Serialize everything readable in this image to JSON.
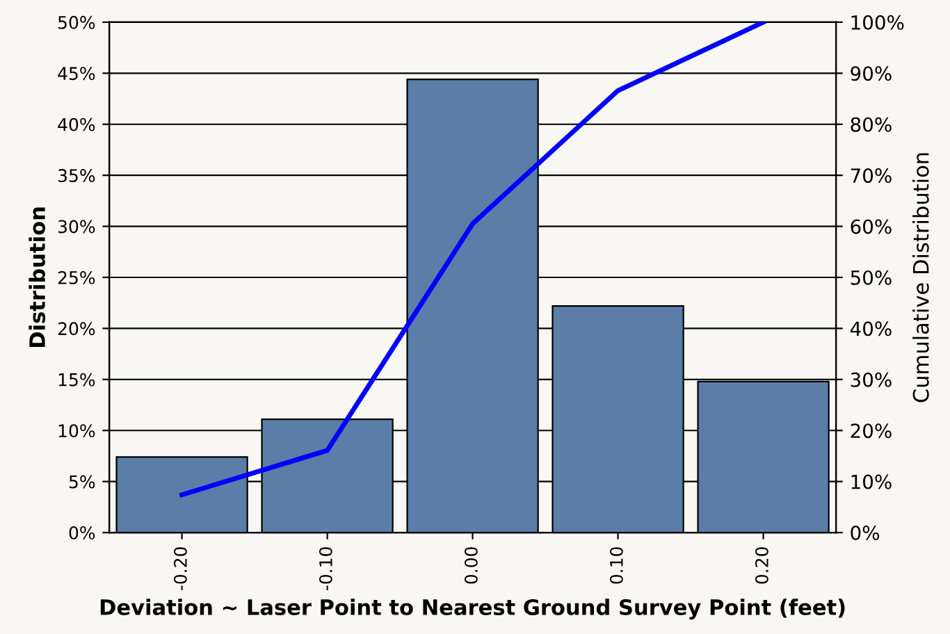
{
  "chart_data": {
    "type": "bar",
    "xlabel": "Deviation ~ Laser Point to Nearest Ground Survey Point (feet)",
    "ylabel": "Distribution",
    "y2label": "Cumulative Distribution",
    "categories": [
      "-0.20",
      "-0.10",
      "0.00",
      "0.10",
      "0.20"
    ],
    "series": [
      {
        "color": "#5b7ea9",
        "values": [
          7.4,
          11.1,
          44.4,
          22.2,
          14.8
        ]
      },
      {
        "type": "line",
        "axis": "y2",
        "color": "#0000ff",
        "values": [
          7.4,
          16.1,
          60.5,
          86.6,
          100
        ]
      }
    ],
    "ylim": [
      0,
      50
    ],
    "yticks": [
      {
        "value": 0,
        "label": "0%"
      },
      {
        "value": 5,
        "label": "5%"
      },
      {
        "value": 10,
        "label": "10%"
      },
      {
        "value": 15,
        "label": "15%"
      },
      {
        "value": 20,
        "label": "20%"
      },
      {
        "value": 25,
        "label": "25%"
      },
      {
        "value": 30,
        "label": "30%"
      },
      {
        "value": 35,
        "label": "35%"
      },
      {
        "value": 40,
        "label": "40%"
      },
      {
        "value": 45,
        "label": "45%"
      },
      {
        "value": 50,
        "label": "50%"
      }
    ],
    "y2lim": [
      0,
      100
    ],
    "y2ticks": [
      {
        "value": 0,
        "label": "0%"
      },
      {
        "value": 10,
        "label": "10%"
      },
      {
        "value": 20,
        "label": "20%"
      },
      {
        "value": 30,
        "label": "30%"
      },
      {
        "value": 40,
        "label": "40%"
      },
      {
        "value": 50,
        "label": "50%"
      },
      {
        "value": 60,
        "label": "60%"
      },
      {
        "value": 70,
        "label": "70%"
      },
      {
        "value": 80,
        "label": "80%"
      },
      {
        "value": 90,
        "label": "90%"
      },
      {
        "value": 100,
        "label": "100%"
      }
    ],
    "grid": "y",
    "legend": false,
    "marker": "none",
    "line_style": "solid"
  }
}
